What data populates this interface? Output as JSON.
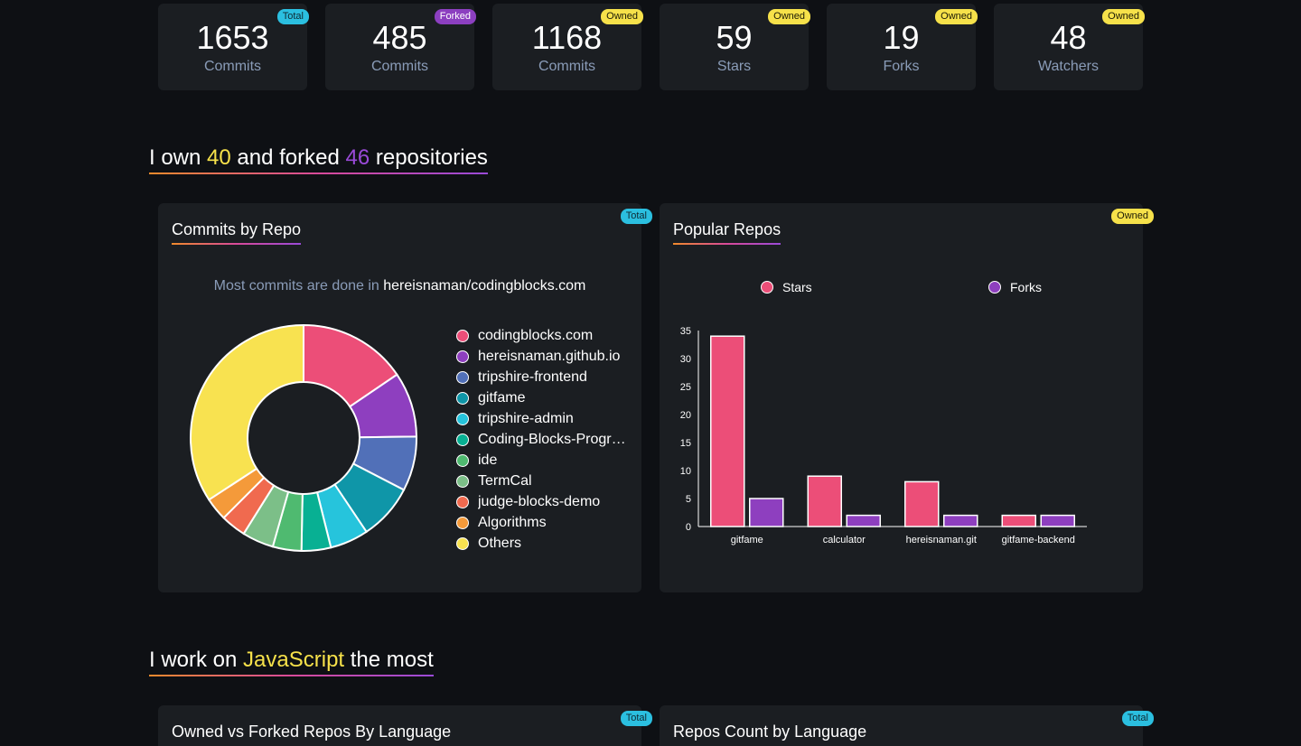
{
  "stats": [
    {
      "value": "1653",
      "label": "Commits",
      "badge": "Total"
    },
    {
      "value": "485",
      "label": "Commits",
      "badge": "Forked"
    },
    {
      "value": "1168",
      "label": "Commits",
      "badge": "Owned"
    },
    {
      "value": "59",
      "label": "Stars",
      "badge": "Owned"
    },
    {
      "value": "19",
      "label": "Forks",
      "badge": "Owned"
    },
    {
      "value": "48",
      "label": "Watchers",
      "badge": "Owned"
    }
  ],
  "repos_heading": {
    "pre": "I own ",
    "owned": "40",
    "mid": " and forked ",
    "forked": "46",
    "post": " repositories"
  },
  "lang_heading": {
    "pre": "I work on ",
    "lang": "JavaScript",
    "post": " the most"
  },
  "commits_panel": {
    "title": "Commits by Repo",
    "badge": "Total",
    "subtitle_pre": "Most commits are done in ",
    "subtitle_repo": "hereisnaman/codingblocks.com"
  },
  "popular_panel": {
    "title": "Popular Repos",
    "badge": "Owned"
  },
  "lang_vs_panel": {
    "title": "Owned vs Forked Repos By Language",
    "badge": "Total"
  },
  "repos_count_panel": {
    "title": "Repos Count by Language",
    "badge": "Total"
  },
  "colors": {
    "total_badge": "#2bbfe0",
    "forked_badge": "#8c3fc0",
    "owned_badge": "#f6e14a"
  },
  "chart_data": [
    {
      "type": "pie",
      "labels": [
        "codingblocks.com",
        "hereisnaman.github.io",
        "tripshire-frontend",
        "gitfame",
        "tripshire-admin",
        "Coding-Blocks-Progr…",
        "ide",
        "TermCal",
        "judge-blocks-demo",
        "Algorithms",
        "Others"
      ],
      "values": [
        15.5,
        9.3,
        7.8,
        8.0,
        5.5,
        4.2,
        4.1,
        4.5,
        3.6,
        3.3,
        34.2
      ],
      "colors": [
        "#ec4e78",
        "#8e3fbf",
        "#5170b8",
        "#0f96a8",
        "#26c4dc",
        "#08b093",
        "#4fba70",
        "#7cbf88",
        "#f06a4f",
        "#f49a3a",
        "#f8e250"
      ]
    },
    {
      "type": "bar",
      "categories": [
        "gitfame",
        "calculator",
        "hereisnaman.git",
        "gitfame-backend"
      ],
      "series": [
        {
          "name": "Stars",
          "values": [
            34,
            9,
            8,
            2
          ],
          "color": "#ec4e78"
        },
        {
          "name": "Forks",
          "values": [
            5,
            2,
            2,
            2
          ],
          "color": "#8e3fbf"
        }
      ],
      "ylim": [
        0,
        35
      ],
      "yticks": [
        0,
        5,
        10,
        15,
        20,
        25,
        30,
        35
      ],
      "legend": "top"
    }
  ]
}
